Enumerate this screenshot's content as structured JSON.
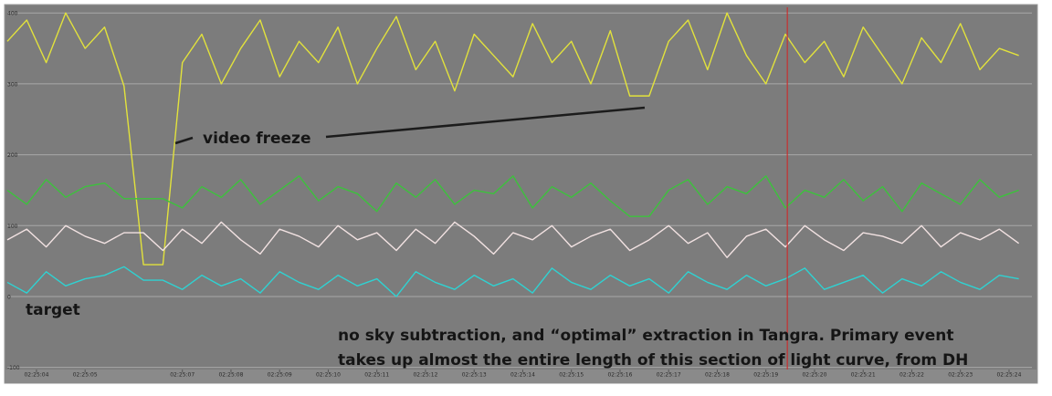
{
  "chart_data": {
    "type": "line",
    "x": [
      3.4,
      3.8,
      4.2,
      4.6,
      5,
      5.4,
      5.8,
      6.2,
      6.6,
      7,
      7.4,
      7.8,
      8.2,
      8.6,
      9,
      9.4,
      9.8,
      10.2,
      10.6,
      11,
      11.4,
      11.8,
      12.2,
      12.6,
      13,
      13.4,
      13.8,
      14.2,
      14.6,
      15,
      15.4,
      15.8,
      16.2,
      16.6,
      17,
      17.4,
      17.8,
      18.2,
      18.6,
      19,
      19.4,
      19.8,
      20.2,
      20.6,
      21,
      21.4,
      21.8,
      22.2,
      22.6,
      23,
      23.4,
      23.8,
      24.2
    ],
    "series": [
      {
        "color": "#e2e23c",
        "values": [
          360,
          390,
          330,
          400,
          350,
          380,
          297,
          45,
          45,
          330,
          370,
          300,
          350,
          390,
          310,
          360,
          330,
          380,
          300,
          350,
          395,
          320,
          360,
          290,
          370,
          340,
          310,
          385,
          330,
          360,
          300,
          375,
          283,
          283,
          360,
          390,
          320,
          400,
          340,
          300,
          370,
          330,
          360,
          310,
          380,
          340,
          300,
          365,
          330,
          385,
          320,
          350,
          340
        ]
      },
      {
        "color": "#3cc23c",
        "values": [
          150,
          130,
          165,
          140,
          155,
          160,
          138,
          138,
          138,
          125,
          155,
          140,
          165,
          130,
          150,
          170,
          135,
          155,
          145,
          120,
          160,
          140,
          165,
          130,
          150,
          145,
          170,
          125,
          155,
          140,
          160,
          135,
          113,
          113,
          150,
          165,
          130,
          155,
          145,
          170,
          125,
          150,
          140,
          165,
          135,
          155,
          120,
          160,
          145,
          130,
          165,
          140,
          150
        ]
      },
      {
        "color": "#f2e2e2",
        "values": [
          80,
          95,
          70,
          100,
          85,
          75,
          90,
          90,
          65,
          95,
          75,
          105,
          80,
          60,
          95,
          85,
          70,
          100,
          80,
          90,
          65,
          95,
          75,
          105,
          85,
          60,
          90,
          80,
          100,
          70,
          85,
          95,
          65,
          80,
          100,
          75,
          90,
          55,
          85,
          95,
          70,
          100,
          80,
          65,
          90,
          85,
          75,
          100,
          70,
          90,
          80,
          95,
          75
        ]
      },
      {
        "color": "#2fd2d2",
        "values": [
          20,
          5,
          35,
          15,
          25,
          30,
          42,
          23,
          23,
          10,
          30,
          15,
          25,
          5,
          35,
          20,
          10,
          30,
          15,
          25,
          0,
          35,
          20,
          10,
          30,
          15,
          25,
          5,
          40,
          20,
          10,
          30,
          15,
          25,
          5,
          35,
          20,
          10,
          30,
          15,
          25,
          40,
          10,
          20,
          30,
          5,
          25,
          15,
          35,
          20,
          10,
          30,
          25
        ]
      }
    ],
    "xlim": [
      3.4,
      24.47
    ],
    "xticks": [
      {
        "value": 4,
        "label": "02:25:04"
      },
      {
        "value": 5,
        "label": "02:25:05"
      },
      {
        "value": 7,
        "label": "02:25:07"
      },
      {
        "value": 8,
        "label": "02:25:08"
      },
      {
        "value": 9,
        "label": "02:25:09"
      },
      {
        "value": 10,
        "label": "02:25:10"
      },
      {
        "value": 11,
        "label": "02:25:11"
      },
      {
        "value": 12,
        "label": "02:25:12"
      },
      {
        "value": 13,
        "label": "02:25:13"
      },
      {
        "value": 14,
        "label": "02:25:14"
      },
      {
        "value": 15,
        "label": "02:25:15"
      },
      {
        "value": 16,
        "label": "02:25:16"
      },
      {
        "value": 17,
        "label": "02:25:17"
      },
      {
        "value": 18,
        "label": "02:25:18"
      },
      {
        "value": 19,
        "label": "02:25:19"
      },
      {
        "value": 20,
        "label": "02:25:20"
      },
      {
        "value": 21,
        "label": "02:25:21"
      },
      {
        "value": 22,
        "label": "02:25:22"
      },
      {
        "value": 23,
        "label": "02:25:23"
      },
      {
        "value": 24,
        "label": "02:25:24"
      }
    ],
    "ylim": [
      -103,
      408
    ],
    "yticks": [
      -100,
      0,
      100,
      200,
      300,
      400
    ],
    "grid": true,
    "cursor_x": 19.44,
    "cursor_color": "#c83030",
    "annotations": {
      "freeze": "video freeze",
      "target": "target",
      "caption": [
        "no sky subtraction, and “optimal” extraction in Tangra. Primary event",
        "takes up almost the entire length of this section of light curve, from DH"
      ]
    }
  }
}
